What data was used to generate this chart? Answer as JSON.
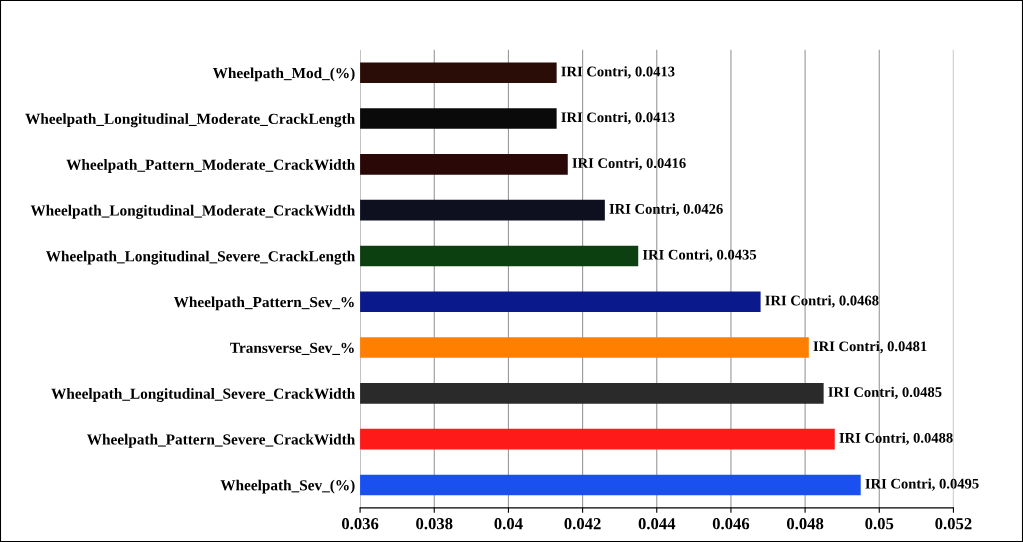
{
  "chart_data": {
    "type": "bar",
    "orientation": "horizontal",
    "categories": [
      "Wheelpath_Mod_(%)",
      "Wheelpath_Longitudinal_Moderate_CrackLength",
      "Wheelpath_Pattern_Moderate_CrackWidth",
      "Wheelpath_Longitudinal_Moderate_CrackWidth",
      "Wheelpath_Longitudinal_Severe_CrackLength",
      "Wheelpath_Pattern_Sev_%",
      "Transverse_Sev_%",
      "Wheelpath_Longitudinal_Severe_CrackWidth",
      "Wheelpath_Pattern_Severe_CrackWidth",
      "Wheelpath_Sev_(%)"
    ],
    "values": [
      0.0413,
      0.0413,
      0.0416,
      0.0426,
      0.0435,
      0.0468,
      0.0481,
      0.0485,
      0.0488,
      0.0495
    ],
    "colors": [
      "#2b0d08",
      "#0a0a0a",
      "#2a0808",
      "#0e1020",
      "#0c4010",
      "#0a1a8c",
      "#ff8000",
      "#2a2a2a",
      "#ff1a1a",
      "#1a50f0"
    ],
    "value_labels": [
      "IRI Contri, 0.0413",
      "IRI Contri, 0.0413",
      "IRI Contri, 0.0416",
      "IRI Contri, 0.0426",
      "IRI Contri, 0.0435",
      "IRI Contri, 0.0468",
      "IRI Contri, 0.0481",
      "IRI Contri, 0.0485",
      "IRI Contri, 0.0488",
      "IRI Contri, 0.0495"
    ],
    "xlim": [
      0.036,
      0.052
    ],
    "xticks": [
      0.036,
      0.038,
      0.04,
      0.042,
      0.044,
      0.046,
      0.048,
      0.05,
      0.052
    ],
    "grid": "x"
  }
}
